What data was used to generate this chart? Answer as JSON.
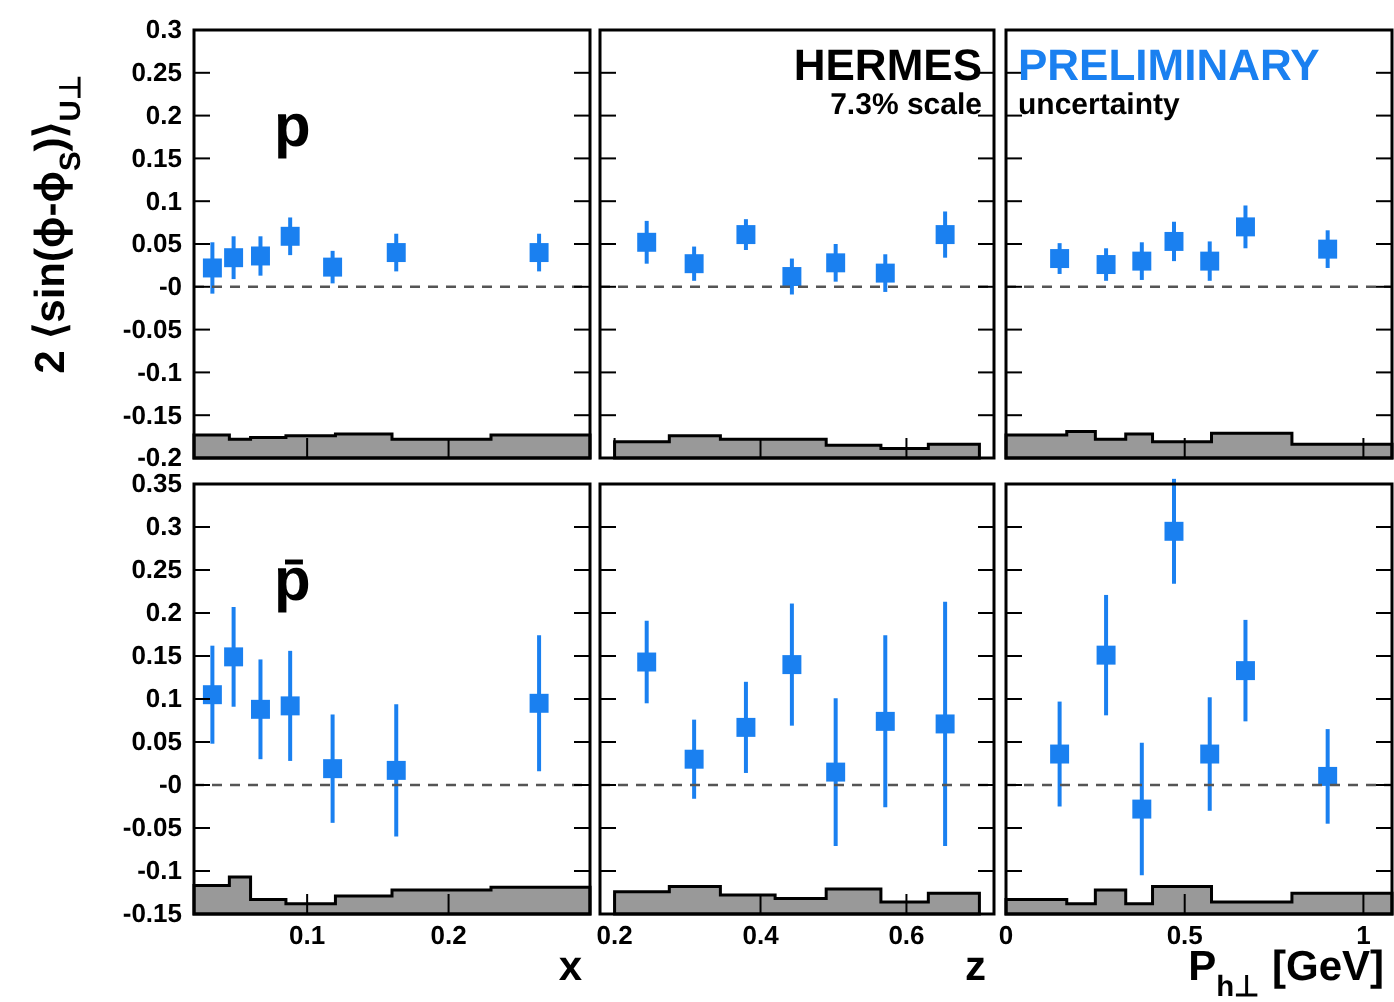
{
  "chart_data": [
    {
      "type": "scatter",
      "ylabel": "2 ⟨sin(ϕ-ϕ$_{S}$)⟩$_{U⊥}$",
      "annotations": [
        "p"
      ],
      "tick_labels": "y",
      "xlim": [
        0.02,
        0.3
      ],
      "xticks": [
        0.1,
        0.2
      ],
      "ylim": [
        -0.2,
        0.3
      ],
      "yticks": [
        0.3,
        0.25,
        0.2,
        0.15,
        0.1,
        0.05,
        {
          "value": 0,
          "label": "-0"
        },
        -0.05,
        -0.1,
        -0.15,
        -0.2
      ],
      "ref_lines": [
        {
          "axis": "y",
          "value": 0,
          "line_style": "dashed",
          "color": "#555555"
        }
      ],
      "series": [
        {
          "type": "scatter",
          "marker": "square",
          "color": "#1a80f0",
          "x": [
            0.033,
            0.048,
            0.067,
            0.088,
            0.118,
            0.163,
            0.264
          ],
          "values": [
            0.022,
            0.034,
            0.036,
            0.059,
            0.023,
            0.04,
            0.04
          ],
          "errors": [
            0.03,
            0.025,
            0.023,
            0.022,
            0.019,
            0.022,
            0.022
          ]
        },
        {
          "type": "area",
          "color": "#999999",
          "x": [
            0.02,
            0.02,
            0.045,
            0.045,
            0.06,
            0.06,
            0.085,
            0.085,
            0.12,
            0.12,
            0.16,
            0.16,
            0.23,
            0.23,
            0.3,
            0.3
          ],
          "values": [
            -0.2,
            -0.173,
            -0.173,
            -0.178,
            -0.178,
            -0.176,
            -0.176,
            -0.174,
            -0.174,
            -0.172,
            -0.172,
            -0.178,
            -0.178,
            -0.173,
            -0.173,
            -0.2
          ]
        }
      ]
    },
    {
      "type": "scatter",
      "annotations": [
        "HERMES",
        "7.3% scale"
      ],
      "tick_labels": false,
      "xlim": [
        0.18,
        0.72
      ],
      "xticks": [
        0.2,
        0.4,
        0.6
      ],
      "ylim": [
        -0.2,
        0.3
      ],
      "yticks": [
        0.3,
        0.25,
        0.2,
        0.15,
        0.1,
        0.05,
        0,
        -0.05,
        -0.1,
        -0.15,
        -0.2
      ],
      "ref_lines": [
        {
          "axis": "y",
          "value": 0,
          "line_style": "dashed",
          "color": "#555555"
        }
      ],
      "series": [
        {
          "type": "scatter",
          "marker": "square",
          "color": "#1a80f0",
          "x": [
            0.244,
            0.309,
            0.38,
            0.443,
            0.503,
            0.571,
            0.653
          ],
          "values": [
            0.052,
            0.027,
            0.061,
            0.012,
            0.028,
            0.016,
            0.061
          ],
          "errors": [
            0.025,
            0.02,
            0.018,
            0.021,
            0.022,
            0.022,
            0.027
          ]
        },
        {
          "type": "area",
          "color": "#999999",
          "x": [
            0.2,
            0.2,
            0.275,
            0.275,
            0.345,
            0.345,
            0.42,
            0.42,
            0.49,
            0.49,
            0.565,
            0.565,
            0.63,
            0.63,
            0.7,
            0.7
          ],
          "values": [
            -0.2,
            -0.181,
            -0.181,
            -0.174,
            -0.174,
            -0.178,
            -0.178,
            -0.178,
            -0.178,
            -0.185,
            -0.185,
            -0.189,
            -0.189,
            -0.184,
            -0.184,
            -0.2
          ]
        }
      ]
    },
    {
      "type": "scatter",
      "annotations": [
        "PRELIMINARY",
        "uncertainty"
      ],
      "tick_labels": false,
      "xlim": [
        0,
        1.08
      ],
      "xticks": [
        0,
        0.5,
        1
      ],
      "ylim": [
        -0.2,
        0.3
      ],
      "yticks": [
        0.3,
        0.25,
        0.2,
        0.15,
        0.1,
        0.05,
        0,
        -0.05,
        -0.1,
        -0.15,
        -0.2
      ],
      "ref_lines": [
        {
          "axis": "y",
          "value": 0,
          "line_style": "dashed",
          "color": "#555555"
        }
      ],
      "series": [
        {
          "type": "scatter",
          "marker": "square",
          "color": "#1a80f0",
          "x": [
            0.15,
            0.28,
            0.38,
            0.47,
            0.57,
            0.67,
            0.9
          ],
          "values": [
            0.033,
            0.026,
            0.03,
            0.053,
            0.03,
            0.07,
            0.044
          ],
          "errors": [
            0.018,
            0.019,
            0.022,
            0.023,
            0.023,
            0.025,
            0.022
          ]
        },
        {
          "type": "area",
          "color": "#999999",
          "x": [
            0,
            0,
            0.17,
            0.17,
            0.25,
            0.25,
            0.335,
            0.335,
            0.41,
            0.41,
            0.575,
            0.575,
            0.8,
            0.8,
            1.08,
            1.08
          ],
          "values": [
            -0.2,
            -0.173,
            -0.173,
            -0.169,
            -0.169,
            -0.178,
            -0.178,
            -0.172,
            -0.172,
            -0.181,
            -0.181,
            -0.171,
            -0.171,
            -0.184,
            -0.184,
            -0.2
          ]
        }
      ]
    },
    {
      "type": "scatter",
      "xlabel": "x",
      "annotations": [
        "p̄"
      ],
      "xlim": [
        0.02,
        0.3
      ],
      "xticks": [
        0.1,
        0.2
      ],
      "ylim": [
        -0.15,
        0.35
      ],
      "yticks": [
        0.35,
        0.3,
        0.25,
        0.2,
        0.15,
        0.1,
        0.05,
        {
          "value": 0,
          "label": "-0"
        },
        -0.05,
        -0.1,
        -0.15
      ],
      "ref_lines": [
        {
          "axis": "y",
          "value": 0,
          "line_style": "dashed",
          "color": "#555555"
        }
      ],
      "series": [
        {
          "type": "scatter",
          "marker": "square",
          "color": "#1a80f0",
          "x": [
            0.033,
            0.048,
            0.067,
            0.088,
            0.118,
            0.163,
            0.264
          ],
          "values": [
            0.105,
            0.149,
            0.088,
            0.092,
            0.019,
            0.017,
            0.095
          ],
          "errors": [
            0.057,
            0.058,
            0.058,
            0.064,
            0.063,
            0.077,
            0.079
          ]
        },
        {
          "type": "area",
          "color": "#999999",
          "x": [
            0.02,
            0.02,
            0.045,
            0.045,
            0.06,
            0.06,
            0.085,
            0.085,
            0.12,
            0.12,
            0.16,
            0.16,
            0.23,
            0.23,
            0.3,
            0.3
          ],
          "values": [
            -0.15,
            -0.117,
            -0.117,
            -0.107,
            -0.107,
            -0.133,
            -0.133,
            -0.138,
            -0.138,
            -0.129,
            -0.129,
            -0.122,
            -0.122,
            -0.119,
            -0.119,
            -0.15
          ]
        }
      ]
    },
    {
      "type": "scatter",
      "xlabel": "z",
      "tick_labels": "x",
      "xlim": [
        0.18,
        0.72
      ],
      "xticks": [
        0.2,
        0.4,
        0.6
      ],
      "ylim": [
        -0.15,
        0.35
      ],
      "yticks": [
        0.35,
        0.3,
        0.25,
        0.2,
        0.15,
        0.1,
        0.05,
        0,
        -0.05,
        -0.1,
        -0.15
      ],
      "ref_lines": [
        {
          "axis": "y",
          "value": 0,
          "line_style": "dashed",
          "color": "#555555"
        }
      ],
      "series": [
        {
          "type": "scatter",
          "marker": "square",
          "color": "#1a80f0",
          "x": [
            0.244,
            0.309,
            0.38,
            0.443,
            0.503,
            0.571,
            0.653
          ],
          "values": [
            0.143,
            0.03,
            0.067,
            0.14,
            0.015,
            0.074,
            0.071
          ],
          "errors": [
            0.048,
            0.046,
            0.053,
            0.071,
            0.086,
            0.1,
            0.142
          ]
        },
        {
          "type": "area",
          "color": "#999999",
          "x": [
            0.2,
            0.2,
            0.275,
            0.275,
            0.345,
            0.345,
            0.42,
            0.42,
            0.49,
            0.49,
            0.565,
            0.565,
            0.63,
            0.63,
            0.7,
            0.7
          ],
          "values": [
            -0.15,
            -0.124,
            -0.124,
            -0.118,
            -0.118,
            -0.128,
            -0.128,
            -0.132,
            -0.132,
            -0.121,
            -0.121,
            -0.136,
            -0.136,
            -0.126,
            -0.126,
            -0.15
          ]
        }
      ]
    },
    {
      "type": "scatter",
      "xlabel": "P$_{h⊥}$ [GeV]",
      "tick_labels": "x",
      "xlim": [
        0,
        1.08
      ],
      "xticks": [
        0,
        0.5,
        1
      ],
      "ylim": [
        -0.15,
        0.35
      ],
      "yticks": [
        0.35,
        0.3,
        0.25,
        0.2,
        0.15,
        0.1,
        0.05,
        0,
        -0.05,
        -0.1,
        -0.15
      ],
      "ref_lines": [
        {
          "axis": "y",
          "value": 0,
          "line_style": "dashed",
          "color": "#555555"
        }
      ],
      "series": [
        {
          "type": "scatter",
          "marker": "square",
          "color": "#1a80f0",
          "x": [
            0.15,
            0.28,
            0.38,
            0.47,
            0.57,
            0.67,
            0.9
          ],
          "values": [
            0.036,
            0.151,
            -0.028,
            0.295,
            0.036,
            0.133,
            0.01
          ],
          "errors": [
            0.061,
            0.07,
            0.077,
            0.061,
            0.066,
            0.059,
            0.055
          ]
        },
        {
          "type": "area",
          "color": "#999999",
          "x": [
            0,
            0,
            0.17,
            0.17,
            0.25,
            0.25,
            0.335,
            0.335,
            0.41,
            0.41,
            0.575,
            0.575,
            0.8,
            0.8,
            1.08,
            1.08
          ],
          "values": [
            -0.15,
            -0.133,
            -0.133,
            -0.138,
            -0.138,
            -0.122,
            -0.122,
            -0.138,
            -0.138,
            -0.118,
            -0.118,
            -0.136,
            -0.136,
            -0.126,
            -0.126,
            -0.15
          ]
        }
      ]
    }
  ]
}
